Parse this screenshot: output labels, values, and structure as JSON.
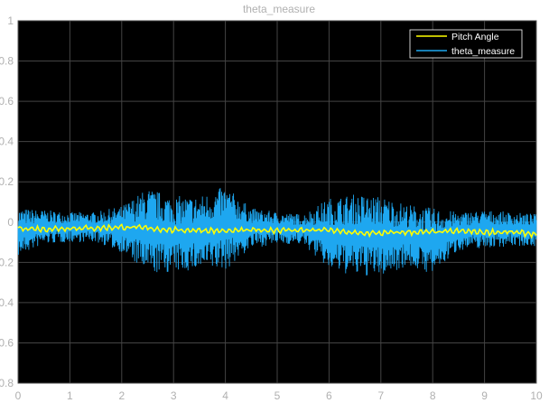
{
  "chart_data": {
    "type": "line",
    "title": "theta_measure",
    "xlabel": "",
    "ylabel": "",
    "xlim": [
      0,
      10
    ],
    "ylim": [
      -0.8,
      1
    ],
    "x_ticks": [
      0,
      1,
      2,
      3,
      4,
      5,
      6,
      7,
      8,
      9,
      10
    ],
    "x_tick_labels": [
      "0",
      "1",
      "2",
      "3",
      "4",
      "5",
      "6",
      "7",
      "8",
      "9",
      "10"
    ],
    "y_ticks": [
      1,
      0.8,
      0.6,
      0.4,
      0.2,
      0,
      -0.2,
      -0.4,
      -0.6,
      -0.8
    ],
    "y_tick_labels": [
      "1",
      "0.8",
      "0.6",
      "0.4",
      "0.2",
      "0",
      "0.2",
      "0.4",
      "0.6",
      "0.8"
    ],
    "grid": true,
    "legend_position": "top-right",
    "background_color": "#000000",
    "series": [
      {
        "name": "Pitch Angle",
        "color": "#ffff00",
        "x": [
          0,
          0.5,
          1,
          1.5,
          2,
          2.5,
          3,
          3.5,
          4,
          4.5,
          5,
          5.5,
          6,
          6.5,
          7,
          7.5,
          8,
          8.5,
          9,
          9.5,
          10
        ],
        "y": [
          -0.03,
          -0.035,
          -0.03,
          -0.03,
          -0.025,
          -0.03,
          -0.04,
          -0.04,
          -0.045,
          -0.04,
          -0.04,
          -0.04,
          -0.04,
          -0.055,
          -0.055,
          -0.05,
          -0.05,
          -0.045,
          -0.05,
          -0.05,
          -0.06
        ]
      },
      {
        "name": "theta_measure",
        "color": "#1ea7f0",
        "x": [
          0,
          0.5,
          1,
          1.5,
          2,
          2.5,
          3,
          3.5,
          4,
          4.5,
          5,
          5.5,
          6,
          6.5,
          7,
          7.5,
          8,
          8.5,
          9,
          9.5,
          10
        ],
        "y_max": [
          0.07,
          0.06,
          0.05,
          0.05,
          0.08,
          0.17,
          0.13,
          0.13,
          0.18,
          0.07,
          0.05,
          0.04,
          0.12,
          0.14,
          0.13,
          0.09,
          0.07,
          0.05,
          0.06,
          0.05,
          0.04
        ],
        "y_min": [
          -0.17,
          -0.11,
          -0.1,
          -0.1,
          -0.15,
          -0.26,
          -0.25,
          -0.24,
          -0.24,
          -0.13,
          -0.11,
          -0.11,
          -0.24,
          -0.27,
          -0.27,
          -0.22,
          -0.26,
          -0.14,
          -0.13,
          -0.12,
          -0.12
        ]
      }
    ]
  }
}
